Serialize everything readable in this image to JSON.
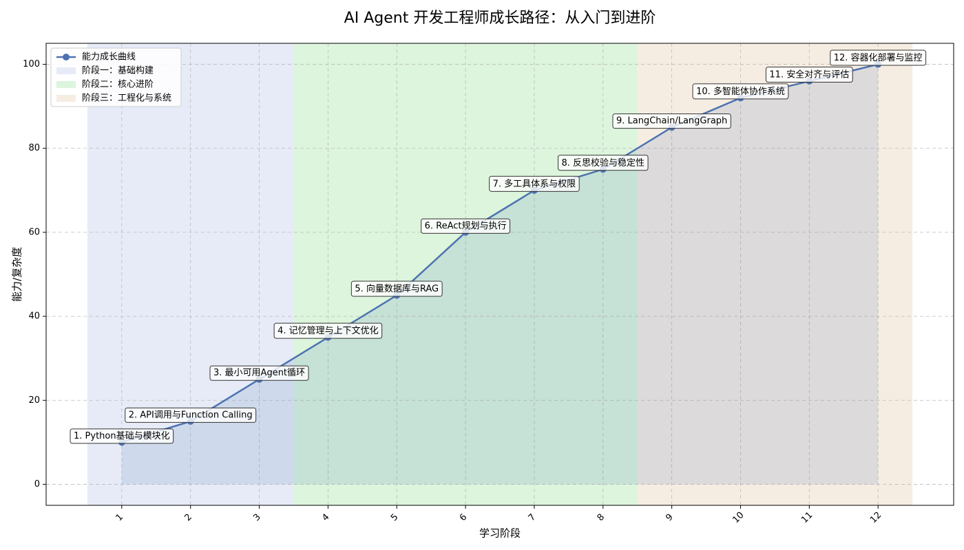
{
  "chart_data": {
    "type": "line",
    "title": "AI Agent 开发工程师成长路径：从入门到进阶",
    "xlabel": "学习阶段",
    "ylabel": "能力/复杂度",
    "x": [
      1,
      2,
      3,
      4,
      5,
      6,
      7,
      8,
      9,
      10,
      11,
      12
    ],
    "series": [
      {
        "name": "能力成长曲线",
        "color": "#4c72b0",
        "values": [
          10,
          15,
          25,
          35,
          45,
          60,
          70,
          75,
          85,
          92,
          96,
          100
        ]
      }
    ],
    "point_labels": [
      "1. Python基础与模块化",
      "2. API调用与Function Calling",
      "3. 最小可用Agent循环",
      "4. 记忆管理与上下文优化",
      "5. 向量数据库与RAG",
      "6. ReAct规划与执行",
      "7. 多工具体系与权限",
      "8. 反思校验与稳定性",
      "9. LangChain/LangGraph",
      "10. 多智能体协作系统",
      "11. 安全对齐与评估",
      "12. 容器化部署与监控"
    ],
    "phases": [
      {
        "name": "阶段一：基础构建",
        "color": "#e6ebf7",
        "range": [
          0.5,
          3.5
        ]
      },
      {
        "name": "阶段二：核心进阶",
        "color": "#dcf5dc",
        "range": [
          3.5,
          8.5
        ]
      },
      {
        "name": "阶段三：工程化与系统",
        "color": "#f6ede2",
        "range": [
          8.5,
          12.5
        ]
      }
    ],
    "xlim": [
      -0.1,
      13.1
    ],
    "ylim": [
      -5,
      105
    ],
    "xticks": [
      1,
      2,
      3,
      4,
      5,
      6,
      7,
      8,
      9,
      10,
      11,
      12
    ],
    "yticks": [
      0,
      20,
      40,
      60,
      80,
      100
    ],
    "grid": true,
    "legend": "upper left"
  }
}
